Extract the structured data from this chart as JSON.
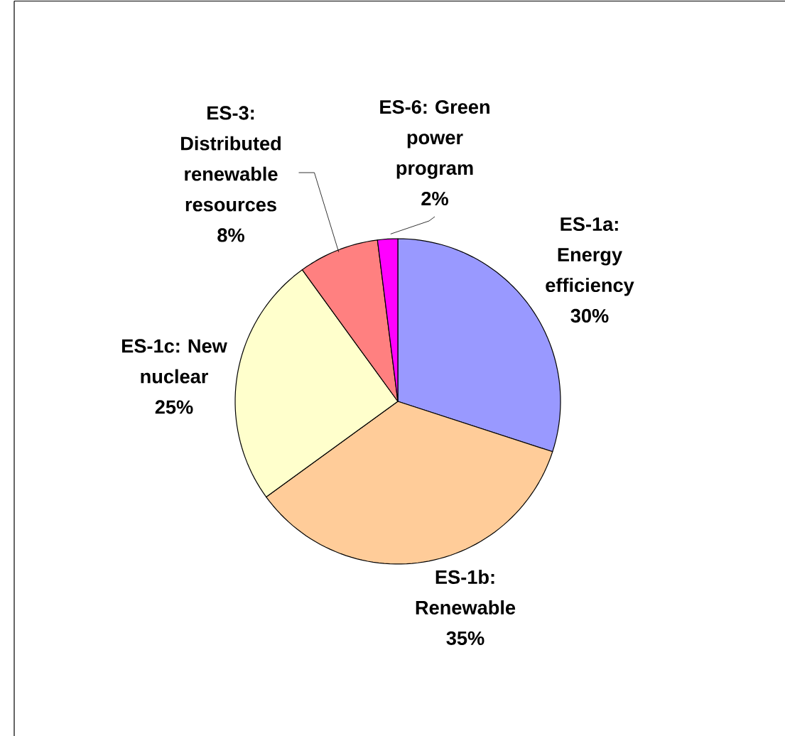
{
  "chart_data": {
    "type": "pie",
    "categories": [
      "ES-1a: Energy efficiency",
      "ES-1b: Renewable",
      "ES-1c: New nuclear",
      "ES-3: Distributed renewable resources",
      "ES-6: Green power program"
    ],
    "values": [
      30,
      35,
      25,
      8,
      2
    ],
    "value_labels": [
      "30%",
      "35%",
      "25%",
      "8%",
      "2%"
    ],
    "colors": [
      "#9999ff",
      "#ffcc99",
      "#ffffcc",
      "#ff8080",
      "#ff00ff"
    ]
  }
}
